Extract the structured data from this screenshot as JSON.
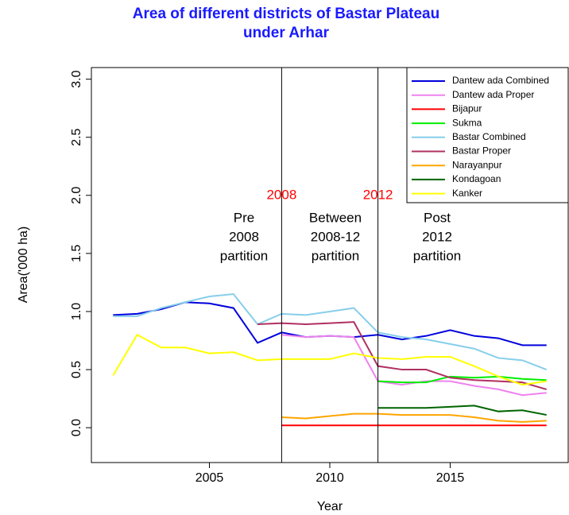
{
  "chart_data": {
    "type": "line",
    "title": [
      "Area of different districts of Bastar Plateau",
      "under Arhar"
    ],
    "x_label": "Year",
    "y_label": "Area('000 ha)",
    "x": [
      2001,
      2002,
      2003,
      2004,
      2005,
      2006,
      2007,
      2008,
      2009,
      2010,
      2011,
      2012,
      2013,
      2014,
      2015,
      2016,
      2017,
      2018,
      2019
    ],
    "xlim": [
      2000.1,
      2019.9
    ],
    "xticks": [
      2005,
      2010,
      2015
    ],
    "ylim": [
      -0.3,
      3.1
    ],
    "yticks": [
      {
        "value": 0,
        "label": "0.0"
      },
      {
        "value": 0.5,
        "label": "0.5"
      },
      {
        "value": 1,
        "label": "1.0"
      },
      {
        "value": 1.5,
        "label": "1.5"
      },
      {
        "value": 2,
        "label": "2.0"
      },
      {
        "value": 2.5,
        "label": "2.5"
      },
      {
        "value": 3,
        "label": "3.0"
      }
    ],
    "legend": "topright",
    "vlines": [
      2008,
      2012
    ],
    "vline_label_color": "#ff0000",
    "annotations": [
      [
        "Pre",
        "2008",
        "partition"
      ],
      [
        "Between",
        "2008-12",
        "partition"
      ],
      [
        "Post",
        "2012",
        "partition"
      ]
    ],
    "series": [
      {
        "name": "Dantew ada Combined",
        "color": "#0000dd",
        "values": [
          0.97,
          0.98,
          1.02,
          1.08,
          1.07,
          1.03,
          0.73,
          0.82,
          0.78,
          0.79,
          0.78,
          0.8,
          0.76,
          0.79,
          0.84,
          0.79,
          0.77,
          0.71,
          0.71
        ]
      },
      {
        "name": "Dantew ada Proper",
        "color": "#ee82ee",
        "values": [
          null,
          null,
          null,
          null,
          null,
          null,
          null,
          0.8,
          0.78,
          0.79,
          0.78,
          0.4,
          0.37,
          0.4,
          0.4,
          0.36,
          0.33,
          0.28,
          0.3
        ]
      },
      {
        "name": "Bijapur",
        "color": "#ff0000",
        "values": [
          null,
          null,
          null,
          null,
          null,
          null,
          null,
          0.02,
          0.02,
          0.02,
          0.02,
          0.02,
          0.02,
          0.02,
          0.02,
          0.02,
          0.02,
          0.02,
          0.02
        ]
      },
      {
        "name": "Sukma",
        "color": "#00ee00",
        "values": [
          null,
          null,
          null,
          null,
          null,
          null,
          null,
          null,
          null,
          null,
          null,
          0.4,
          0.39,
          0.39,
          0.44,
          0.43,
          0.44,
          0.42,
          0.41
        ]
      },
      {
        "name": "Bastar Combined",
        "color": "#87ceeb",
        "values": [
          0.96,
          0.96,
          1.03,
          1.08,
          1.13,
          1.15,
          0.89,
          0.98,
          0.97,
          1.0,
          1.03,
          0.82,
          0.78,
          0.76,
          0.72,
          0.68,
          0.6,
          0.58,
          0.5
        ]
      },
      {
        "name": "Bastar Proper",
        "color": "#b03060",
        "values": [
          null,
          null,
          null,
          null,
          null,
          null,
          0.89,
          0.9,
          0.89,
          0.9,
          0.91,
          0.53,
          0.5,
          0.5,
          0.43,
          0.41,
          0.4,
          0.39,
          0.33
        ]
      },
      {
        "name": "Narayanpur",
        "color": "#ffa500",
        "values": [
          null,
          null,
          null,
          null,
          null,
          null,
          null,
          0.09,
          0.08,
          0.1,
          0.12,
          0.12,
          0.11,
          0.11,
          0.11,
          0.09,
          0.06,
          0.05,
          0.06
        ]
      },
      {
        "name": "Kondagoan",
        "color": "#006400",
        "values": [
          null,
          null,
          null,
          null,
          null,
          null,
          null,
          null,
          null,
          null,
          null,
          0.17,
          0.17,
          0.17,
          0.18,
          0.19,
          0.14,
          0.15,
          0.11
        ]
      },
      {
        "name": "Kanker",
        "color": "#ffff00",
        "values": [
          0.45,
          0.8,
          0.69,
          0.69,
          0.64,
          0.65,
          0.58,
          0.59,
          0.59,
          0.59,
          0.64,
          0.6,
          0.59,
          0.61,
          0.61,
          0.53,
          0.44,
          0.37,
          0.4
        ]
      }
    ]
  }
}
